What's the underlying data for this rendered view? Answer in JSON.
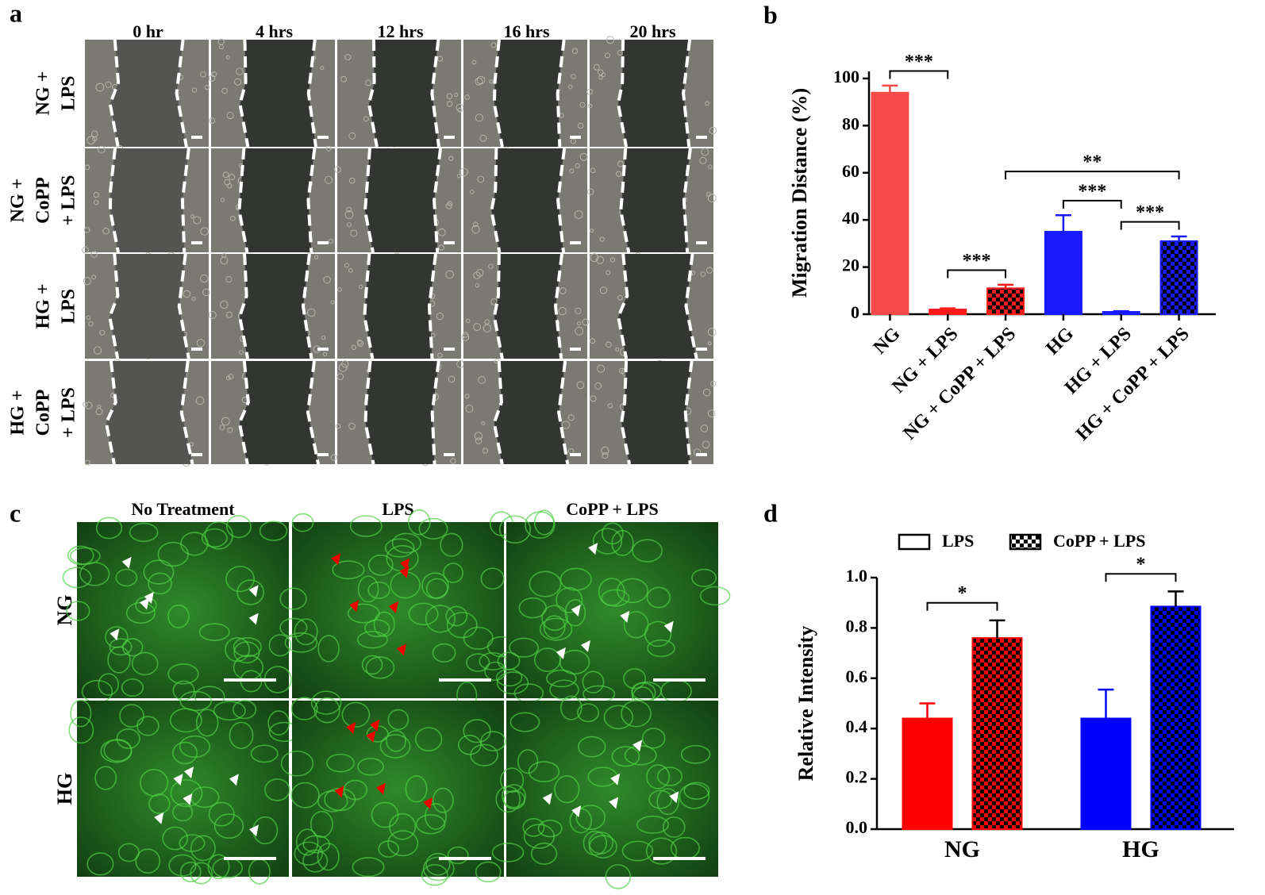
{
  "panel_labels": [
    "a",
    "b",
    "c",
    "d"
  ],
  "panel_a": {
    "columns": [
      "0 hr",
      "4 hrs",
      "12 hrs",
      "16 hrs",
      "20 hrs"
    ],
    "rows": [
      [
        "NG +",
        "LPS"
      ],
      [
        "NG +",
        "CoPP",
        "+ LPS"
      ],
      [
        "HG +",
        "LPS"
      ],
      [
        "HG +",
        "CoPP",
        "+ LPS"
      ]
    ]
  },
  "panel_c": {
    "columns": [
      "No Treatment",
      "LPS",
      "CoPP + LPS"
    ],
    "rows": [
      "NG",
      "HG"
    ]
  },
  "chart_data": [
    {
      "type": "bar",
      "ylabel": "Migration Distance (%)",
      "categories": [
        "NG",
        "NG + LPS",
        "NG + CoPP + LPS",
        "HG",
        "HG + LPS",
        "HG + CoPP + LPS"
      ],
      "values": [
        94,
        2,
        11,
        35,
        1,
        31
      ],
      "errors": [
        3,
        0.5,
        1.5,
        7,
        0.3,
        2
      ],
      "colors": [
        "#f54a4a",
        "#ff1a1a",
        "#ff1a1a",
        "#1a1aff",
        "#1a1aff",
        "#1a1aff"
      ],
      "patterns": [
        "solid",
        "solid",
        "checker",
        "solid",
        "solid",
        "checker"
      ],
      "ylim": [
        0,
        103
      ],
      "yticks": [
        0,
        20,
        40,
        60,
        80,
        100
      ],
      "significance": [
        {
          "between": [
            0,
            1
          ],
          "label": "***"
        },
        {
          "between": [
            1,
            2
          ],
          "label": "***"
        },
        {
          "between": [
            3,
            4
          ],
          "label": "***"
        },
        {
          "between": [
            4,
            5
          ],
          "label": "***"
        },
        {
          "between": [
            2,
            5
          ],
          "label": "**"
        }
      ]
    },
    {
      "type": "grouped_bar",
      "ylabel": "Relative Intensity",
      "categories": [
        "NG",
        "HG"
      ],
      "category_colors": [
        "#ff0000",
        "#0000ff"
      ],
      "series": [
        {
          "name": "LPS",
          "pattern": "solid",
          "values": [
            0.44,
            0.44
          ],
          "errors": [
            0.06,
            0.115
          ]
        },
        {
          "name": "CoPP + LPS",
          "pattern": "checker",
          "values": [
            0.76,
            0.885
          ],
          "errors": [
            0.07,
            0.06
          ]
        }
      ],
      "ylim": [
        0,
        1
      ],
      "yticks": [
        {
          "value": 0,
          "label": "0.0"
        },
        0.2,
        0.4,
        0.6,
        0.8,
        {
          "value": 1,
          "label": "1.0"
        }
      ],
      "legend": "top",
      "significance": [
        {
          "category": 0,
          "label": "*"
        },
        {
          "category": 1,
          "label": "*"
        }
      ]
    }
  ]
}
